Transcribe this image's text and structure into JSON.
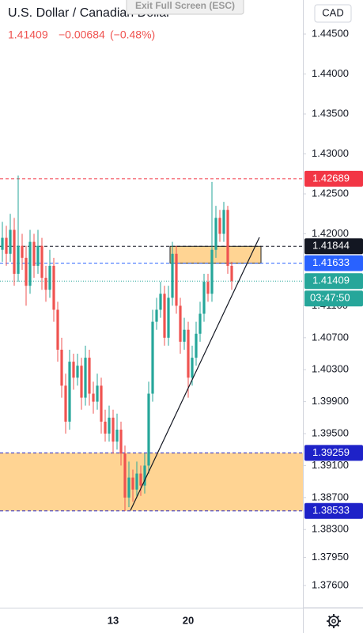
{
  "chart_data": {
    "type": "candlestick",
    "title": "U.S. Dollar / Canadian Dollar",
    "last_price": "1.41409",
    "change": "−0.00684",
    "change_pct": "(−0.48%)",
    "currency": "CAD",
    "overlay": "Exit Full Screen (ESC)",
    "countdown": "03:47:50",
    "up_color": "#26a69a",
    "down_color": "#ef5350",
    "categories": [
      null,
      null,
      null,
      null,
      null,
      null,
      null,
      null,
      null,
      null,
      null,
      null,
      null,
      null,
      null,
      null,
      null,
      null,
      null,
      null,
      null,
      null,
      null,
      null,
      null,
      null,
      null,
      null,
      "13",
      null,
      null,
      null,
      null,
      null,
      null,
      null,
      null,
      null,
      null,
      null,
      null,
      null,
      null,
      null,
      null,
      null,
      null,
      "20",
      null,
      null,
      null,
      null,
      null,
      null,
      null,
      null,
      null,
      null,
      null
    ],
    "open": [
      1.418,
      1.4195,
      1.4175,
      1.4205,
      1.415,
      1.4185,
      1.417,
      1.4135,
      1.419,
      1.416,
      1.4185,
      1.4145,
      1.413,
      1.416,
      1.4105,
      1.4055,
      1.401,
      1.3965,
      1.404,
      1.402,
      1.4035,
      1.3995,
      1.4045,
      1.4,
      1.399,
      1.401,
      1.3965,
      1.395,
      1.397,
      1.394,
      1.3955,
      1.3925,
      1.387,
      1.3895,
      1.388,
      1.39,
      1.3885,
      1.391,
      1.4,
      1.409,
      1.4105,
      1.4125,
      1.407,
      1.412,
      1.4175,
      1.411,
      1.4065,
      1.408,
      1.402,
      1.4045,
      1.4075,
      1.41,
      1.414,
      1.4125,
      1.418,
      1.422,
      1.42,
      1.423,
      1.416
    ],
    "high": [
      1.4215,
      1.421,
      1.4225,
      1.422,
      1.4273,
      1.42,
      1.4185,
      1.4205,
      1.42,
      1.4205,
      1.4195,
      1.416,
      1.418,
      1.417,
      1.4115,
      1.407,
      1.4025,
      1.4055,
      1.405,
      1.405,
      1.4045,
      1.406,
      1.4055,
      1.4015,
      1.4025,
      1.402,
      1.398,
      1.3985,
      1.398,
      1.3975,
      1.3965,
      1.3935,
      1.3915,
      1.3905,
      1.3915,
      1.391,
      1.3925,
      1.4015,
      1.4105,
      1.412,
      1.414,
      1.4135,
      1.4135,
      1.419,
      1.4185,
      1.412,
      1.4095,
      1.409,
      1.406,
      1.409,
      1.4115,
      1.415,
      1.415,
      1.4265,
      1.4235,
      1.423,
      1.424,
      1.4235,
      1.4165
    ],
    "low": [
      1.4165,
      1.416,
      1.4165,
      1.4135,
      1.414,
      1.4155,
      1.411,
      1.4125,
      1.4145,
      1.415,
      1.413,
      1.4115,
      1.412,
      1.409,
      1.404,
      1.3995,
      1.395,
      1.3955,
      1.4005,
      1.401,
      1.398,
      1.3985,
      1.3985,
      1.3975,
      1.398,
      1.395,
      1.394,
      1.394,
      1.3925,
      1.393,
      1.391,
      1.3853,
      1.3858,
      1.3865,
      1.387,
      1.3872,
      1.3875,
      1.39,
      1.399,
      1.408,
      1.4095,
      1.406,
      1.406,
      1.411,
      1.41,
      1.405,
      1.4055,
      1.3995,
      1.401,
      1.4035,
      1.4065,
      1.409,
      1.4115,
      1.4115,
      1.417,
      1.419,
      1.419,
      1.415,
      1.413
    ],
    "close": [
      1.4195,
      1.4175,
      1.4205,
      1.415,
      1.4185,
      1.417,
      1.4135,
      1.419,
      1.416,
      1.4185,
      1.4145,
      1.413,
      1.416,
      1.4105,
      1.4055,
      1.401,
      1.3965,
      1.404,
      1.402,
      1.4035,
      1.3995,
      1.4045,
      1.4,
      1.399,
      1.401,
      1.3965,
      1.395,
      1.397,
      1.394,
      1.3955,
      1.3925,
      1.387,
      1.3895,
      1.388,
      1.39,
      1.3885,
      1.391,
      1.4,
      1.409,
      1.4105,
      1.4125,
      1.407,
      1.412,
      1.4175,
      1.411,
      1.4065,
      1.408,
      1.402,
      1.4045,
      1.4075,
      1.41,
      1.414,
      1.4125,
      1.418,
      1.422,
      1.42,
      1.423,
      1.416,
      1.41409
    ],
    "ylim": [
      1.37322,
      1.44926
    ],
    "yticks": [
      {
        "value": 1.445,
        "label": "1.44500"
      },
      {
        "value": 1.44,
        "label": "1.44000"
      },
      {
        "value": 1.435,
        "label": "1.43500"
      },
      {
        "value": 1.43,
        "label": "1.43000"
      },
      {
        "value": 1.425,
        "label": "1.42500"
      },
      {
        "value": 1.42,
        "label": "1.42000"
      },
      {
        "value": 1.411,
        "label": "1.41100"
      },
      {
        "value": 1.407,
        "label": "1.40700"
      },
      {
        "value": 1.403,
        "label": "1.40300"
      },
      {
        "value": 1.399,
        "label": "1.39900"
      },
      {
        "value": 1.395,
        "label": "1.39500"
      },
      {
        "value": 1.391,
        "label": "1.39100"
      },
      {
        "value": 1.387,
        "label": "1.38700"
      },
      {
        "value": 1.383,
        "label": "1.38300"
      },
      {
        "value": 1.3795,
        "label": "1.37950"
      },
      {
        "value": 1.376,
        "label": "1.37600"
      }
    ],
    "zones": [
      {
        "top": 1.39259,
        "bottom": 1.38533,
        "color": "#ffcc80"
      },
      {
        "top": 1.41844,
        "bottom": 1.41633,
        "color": "#ffcc80"
      }
    ],
    "price_lines": [
      {
        "value": 1.42689,
        "color": "#f23645",
        "style": "dashed"
      },
      {
        "value": 1.41844,
        "color": "#131722",
        "style": "dashed"
      },
      {
        "value": 1.41633,
        "color": "#2962ff",
        "style": "dashed"
      },
      {
        "value": 1.41409,
        "color": "#26a69a",
        "style": "dotted"
      },
      {
        "value": 1.39259,
        "color": "#1e22c8",
        "style": "dashed"
      },
      {
        "value": 1.38533,
        "color": "#1e22c8",
        "style": "dashed"
      }
    ]
  }
}
